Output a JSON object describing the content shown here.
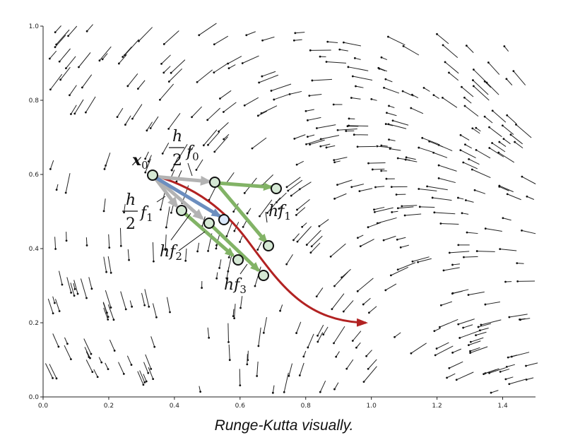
{
  "figure": {
    "caption": "Runge-Kutta visually.",
    "x_axis": {
      "range": [
        0,
        1.5
      ],
      "ticks": [
        "0.0",
        "0.2",
        "0.4",
        "0.6",
        "0.8",
        "1.0",
        "1.2",
        "1.4"
      ]
    },
    "y_axis": {
      "range": [
        0,
        1.0
      ],
      "ticks": [
        "0.0",
        "0.2",
        "0.4",
        "0.6",
        "0.8",
        "1.0"
      ]
    },
    "labels": {
      "x0": "x",
      "x0_sub": "0",
      "h_over_2": "h",
      "two": "2",
      "f0": "f",
      "f0_sub": "0",
      "f1": "f",
      "f1_sub": "1",
      "hf1": "hf",
      "hf1_sub": "1",
      "hf2": "hf",
      "hf2_sub": "2",
      "hf3": "hf",
      "hf3_sub": "3"
    },
    "colors": {
      "grey_arrow": "#b3b3b3",
      "green_arrow": "#82b366",
      "blue_arrow": "#6c8ebf",
      "red_curve": "#b22222",
      "node_fill": "#d5e8d4",
      "node_fill_blue": "#dae8fc"
    },
    "points": {
      "x0": [
        0.335,
        0.6
      ],
      "grey_end": [
        0.525,
        0.58
      ],
      "green_end_top": [
        0.712,
        0.563
      ],
      "x1_mid": [
        0.422,
        0.503
      ],
      "x2_mid": [
        0.505,
        0.47
      ],
      "x3_end": [
        0.552,
        0.478
      ],
      "hf1_end": [
        0.69,
        0.407
      ],
      "hf2_end": [
        0.595,
        0.37
      ],
      "hf3_end": [
        0.672,
        0.328
      ]
    }
  }
}
